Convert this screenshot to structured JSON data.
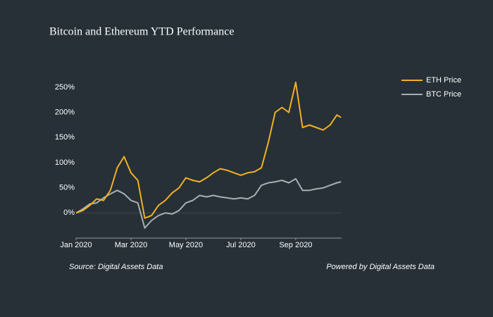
{
  "chart_data": {
    "type": "line",
    "title": "Bitcoin and Ethereum YTD Performance",
    "annotations": [
      "Source: Digital Assets Data",
      "Powered by Digital Assets Data"
    ],
    "x": [
      0,
      0.25,
      0.5,
      0.75,
      1,
      1.25,
      1.5,
      1.75,
      2,
      2.25,
      2.5,
      2.75,
      3,
      3.25,
      3.5,
      3.75,
      4,
      4.25,
      4.5,
      4.75,
      5,
      5.25,
      5.5,
      5.75,
      6,
      6.25,
      6.5,
      6.75,
      7,
      7.25,
      7.5,
      7.75,
      8,
      8.25,
      8.5,
      8.75,
      9,
      9.25,
      9.5,
      9.65
    ],
    "xlim": [
      0,
      9.67
    ],
    "xticks": [
      {
        "value": 0,
        "label": "Jan 2020"
      },
      {
        "value": 2,
        "label": "Mar 2020"
      },
      {
        "value": 4,
        "label": "May 2020"
      },
      {
        "value": 6,
        "label": "Jul 2020"
      },
      {
        "value": 8,
        "label": "Sep 2020"
      }
    ],
    "ylim": [
      -50,
      285
    ],
    "yticks": [
      {
        "value": 0,
        "label": "0%"
      },
      {
        "value": 50,
        "label": "50%"
      },
      {
        "value": 100,
        "label": "100%"
      },
      {
        "value": 150,
        "label": "150%"
      },
      {
        "value": 200,
        "label": "200%"
      },
      {
        "value": 250,
        "label": "250%"
      }
    ],
    "grid": false,
    "zeroline": true,
    "legend": "top-right",
    "series": [
      {
        "name": "ETH Price",
        "color": "#f2b022",
        "values": [
          0,
          5,
          15,
          28,
          25,
          45,
          90,
          112,
          80,
          65,
          -10,
          -5,
          15,
          25,
          40,
          50,
          70,
          65,
          62,
          70,
          80,
          88,
          85,
          80,
          75,
          80,
          82,
          90,
          140,
          200,
          210,
          200,
          260,
          170,
          175,
          170,
          165,
          175,
          195,
          190
        ]
      },
      {
        "name": "BTC Price",
        "color": "#a9aeb1",
        "values": [
          0,
          8,
          18,
          20,
          30,
          38,
          45,
          38,
          25,
          20,
          -30,
          -15,
          -5,
          0,
          -2,
          5,
          20,
          25,
          35,
          32,
          35,
          32,
          30,
          28,
          30,
          28,
          35,
          55,
          60,
          62,
          65,
          60,
          68,
          45,
          45,
          48,
          50,
          55,
          60,
          62
        ]
      }
    ]
  }
}
